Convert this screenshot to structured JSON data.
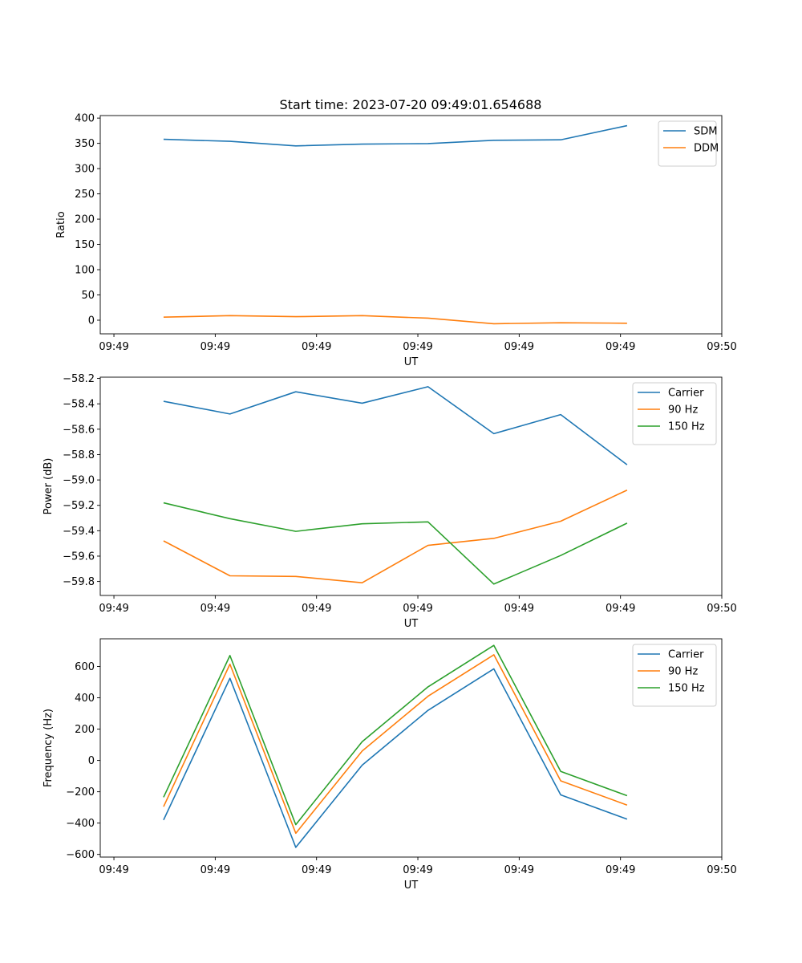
{
  "figure": {
    "title": "Start time: 2023-07-20 09:49:01.654688"
  },
  "chart_data": [
    {
      "type": "line",
      "title": "Start time: 2023-07-20 09:49:01.654688",
      "xlabel": "UT",
      "ylabel": "Ratio",
      "x_tick_labels": [
        "09:49",
        "09:49",
        "09:49",
        "09:49",
        "09:49",
        "09:49",
        "09:50"
      ],
      "x_ticks": [
        0,
        10,
        20,
        30,
        40,
        50,
        60
      ],
      "xlim": [
        -1.35,
        60
      ],
      "x": [
        4.9,
        11.45,
        17.95,
        24.5,
        31.0,
        37.5,
        44.1,
        50.65
      ],
      "ylim": [
        -27,
        405
      ],
      "y_ticks": [
        0,
        50,
        100,
        150,
        200,
        250,
        300,
        350,
        400
      ],
      "y_tick_labels": [
        "0",
        "50",
        "100",
        "150",
        "200",
        "250",
        "300",
        "350",
        "400"
      ],
      "legend_position": "top-right",
      "series": [
        {
          "name": "SDM",
          "color": "#1f77b4",
          "values": [
            358,
            354,
            345,
            348.5,
            349.5,
            356,
            357,
            385
          ]
        },
        {
          "name": "DDM",
          "color": "#ff7f0e",
          "values": [
            6,
            9,
            7,
            9,
            4,
            -7,
            -5,
            -6
          ]
        }
      ]
    },
    {
      "type": "line",
      "xlabel": "UT",
      "ylabel": "Power (dB)",
      "x_tick_labels": [
        "09:49",
        "09:49",
        "09:49",
        "09:49",
        "09:49",
        "09:49",
        "09:50"
      ],
      "x_ticks": [
        0,
        10,
        20,
        30,
        40,
        50,
        60
      ],
      "xlim": [
        -1.35,
        60
      ],
      "x": [
        4.9,
        11.45,
        17.95,
        24.5,
        31.0,
        37.5,
        44.1,
        50.65
      ],
      "ylim": [
        -59.91,
        -58.19
      ],
      "y_ticks": [
        -59.8,
        -59.6,
        -59.4,
        -59.2,
        -59.0,
        -58.8,
        -58.6,
        -58.4,
        -58.2
      ],
      "y_tick_labels": [
        "−59.8",
        "−59.6",
        "−59.4",
        "−59.2",
        "−59.0",
        "−58.8",
        "−58.6",
        "−58.4",
        "−58.2"
      ],
      "legend_position": "top-right",
      "series": [
        {
          "name": "Carrier",
          "color": "#1f77b4",
          "values": [
            -58.38,
            -58.48,
            -58.305,
            -58.395,
            -58.265,
            -58.635,
            -58.485,
            -58.88
          ]
        },
        {
          "name": "90 Hz",
          "color": "#ff7f0e",
          "values": [
            -59.48,
            -59.755,
            -59.76,
            -59.81,
            -59.515,
            -59.46,
            -59.325,
            -59.08
          ]
        },
        {
          "name": "150 Hz",
          "color": "#2ca02c",
          "values": [
            -59.18,
            -59.305,
            -59.405,
            -59.345,
            -59.33,
            -59.82,
            -59.595,
            -59.34
          ]
        }
      ]
    },
    {
      "type": "line",
      "xlabel": "UT",
      "ylabel": "Frequency (Hz)",
      "x_tick_labels": [
        "09:49",
        "09:49",
        "09:49",
        "09:49",
        "09:49",
        "09:49",
        "09:50"
      ],
      "x_ticks": [
        0,
        10,
        20,
        30,
        40,
        50,
        60
      ],
      "xlim": [
        -1.35,
        60
      ],
      "x": [
        4.9,
        11.45,
        17.95,
        24.5,
        31.0,
        37.5,
        44.1,
        50.65
      ],
      "ylim": [
        -617,
        777
      ],
      "y_ticks": [
        -600,
        -400,
        -200,
        0,
        200,
        400,
        600
      ],
      "y_tick_labels": [
        "−600",
        "−400",
        "−200",
        "0",
        "200",
        "400",
        "600"
      ],
      "legend_position": "top-right",
      "series": [
        {
          "name": "Carrier",
          "color": "#1f77b4",
          "values": [
            -380,
            525,
            -555,
            -30,
            320,
            585,
            -220,
            -375
          ]
        },
        {
          "name": "90 Hz",
          "color": "#ff7f0e",
          "values": [
            -295,
            615,
            -465,
            60,
            410,
            675,
            -130,
            -285
          ]
        },
        {
          "name": "150 Hz",
          "color": "#2ca02c",
          "values": [
            -235,
            670,
            -410,
            120,
            470,
            735,
            -70,
            -225
          ]
        }
      ]
    }
  ]
}
